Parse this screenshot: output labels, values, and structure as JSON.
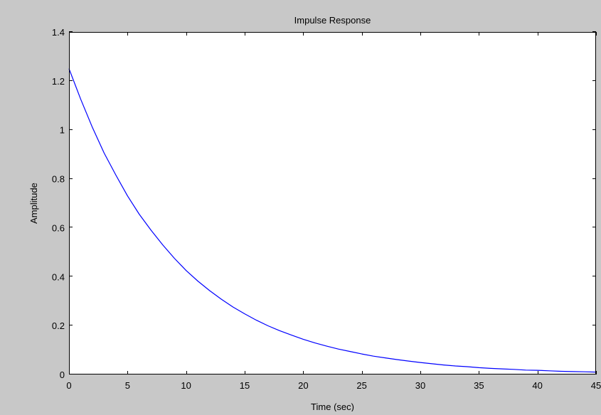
{
  "chart_data": {
    "type": "line",
    "title": "Impulse Response",
    "xlabel": "Time (sec)",
    "ylabel": "Amplitude",
    "xlim": [
      0,
      45
    ],
    "ylim": [
      0,
      1.4
    ],
    "x_ticks": [
      0,
      5,
      10,
      15,
      20,
      25,
      30,
      35,
      40,
      45
    ],
    "y_ticks": [
      0,
      0.2,
      0.4,
      0.6,
      0.8,
      1,
      1.2,
      1.4
    ],
    "x_tick_labels": [
      "0",
      "5",
      "10",
      "15",
      "20",
      "25",
      "30",
      "35",
      "40",
      "45"
    ],
    "y_tick_labels": [
      "0",
      "0.2",
      "0.4",
      "0.6",
      "0.8",
      "1",
      "1.2",
      "1.4"
    ],
    "grid": false,
    "reference_line": {
      "y": 0,
      "style": "dashed"
    },
    "series": [
      {
        "color": "#0000ff",
        "x": [
          0,
          1,
          2,
          3,
          4,
          5,
          6,
          7,
          8,
          9,
          10,
          11,
          12,
          13,
          14,
          15,
          16,
          17,
          18,
          19,
          20,
          21,
          22,
          23,
          24,
          25,
          26,
          27,
          28,
          29,
          30,
          31,
          32,
          33,
          34,
          35,
          36,
          37,
          38,
          39,
          40,
          41,
          42,
          43,
          44,
          45
        ],
        "y": [
          1.25,
          1.125,
          1.01,
          0.905,
          0.815,
          0.73,
          0.655,
          0.59,
          0.53,
          0.475,
          0.425,
          0.382,
          0.343,
          0.308,
          0.276,
          0.248,
          0.222,
          0.199,
          0.179,
          0.161,
          0.144,
          0.129,
          0.116,
          0.104,
          0.094,
          0.084,
          0.075,
          0.068,
          0.061,
          0.055,
          0.049,
          0.044,
          0.039,
          0.035,
          0.032,
          0.028,
          0.025,
          0.023,
          0.021,
          0.018,
          0.017,
          0.015,
          0.013,
          0.012,
          0.011,
          0.01
        ]
      }
    ]
  },
  "colors": {
    "figure_background": "#c8c8c8",
    "axes_background": "#ffffff",
    "axes_border": "#000000",
    "line": "#0000ff",
    "reference_line": "#000000"
  }
}
